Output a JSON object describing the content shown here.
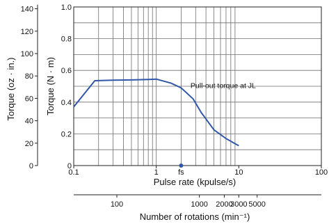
{
  "chart_data": {
    "type": "line",
    "title": "",
    "xlabel": "Pulse rate (kpulse/s)",
    "ylabel": "Torque (N · m)",
    "ylabel_secondary": "Torque (oz · in.)",
    "x_scale": "log",
    "xlim": [
      0.1,
      100
    ],
    "ylim": [
      0,
      1.0
    ],
    "grid": true,
    "x_ticks": [
      {
        "value": 0.1,
        "label": "0.1"
      },
      {
        "value": 1,
        "label": "1"
      },
      {
        "value": 10,
        "label": "10"
      },
      {
        "value": 100,
        "label": "100"
      }
    ],
    "y_ticks": [
      {
        "value": 0,
        "label": "0"
      },
      {
        "value": 0.2,
        "label": "0.2"
      },
      {
        "value": 0.4,
        "label": "0.4"
      },
      {
        "value": 0.6,
        "label": "0.6"
      },
      {
        "value": 0.8,
        "label": "0.8"
      },
      {
        "value": 1.0,
        "label": "1.0"
      }
    ],
    "y2_ticks": [
      {
        "value": 0,
        "label": "0"
      },
      {
        "value": 20,
        "label": "20"
      },
      {
        "value": 40,
        "label": "40"
      },
      {
        "value": 60,
        "label": "60"
      },
      {
        "value": 80,
        "label": "80"
      },
      {
        "value": 100,
        "label": "100"
      },
      {
        "value": 120,
        "label": "120"
      },
      {
        "value": 140,
        "label": "140"
      }
    ],
    "y2_per_y": 141.6,
    "series": [
      {
        "name": "Pull-out torque at JL",
        "color": "#2f56a8",
        "x": [
          0.1,
          0.18,
          0.3,
          0.5,
          0.8,
          1.0,
          1.5,
          2.0,
          2.8,
          3.5,
          5.0,
          7.0,
          10.0
        ],
        "y": [
          0.37,
          0.535,
          0.538,
          0.54,
          0.543,
          0.545,
          0.52,
          0.49,
          0.42,
          0.335,
          0.225,
          0.17,
          0.125
        ]
      }
    ],
    "annotations": [
      {
        "text": "Pull-out torque at JL",
        "x": 2.6,
        "y": 0.49
      }
    ],
    "marker": {
      "label": "fs",
      "x": 2.0,
      "y": 0.0
    },
    "secondary_x_axis": {
      "label": "Number of rotations (min⁻¹)",
      "ticks": [
        {
          "value": 100,
          "label": "100",
          "kpps": 0.333
        },
        {
          "value": 1000,
          "label": "1000",
          "kpps": 3.33
        },
        {
          "value": 2000,
          "label": "2000",
          "kpps": 6.67
        },
        {
          "value": 3000,
          "label": "3000",
          "kpps": 10
        },
        {
          "value": 5000,
          "label": "5000",
          "kpps": 16.67
        }
      ]
    }
  }
}
